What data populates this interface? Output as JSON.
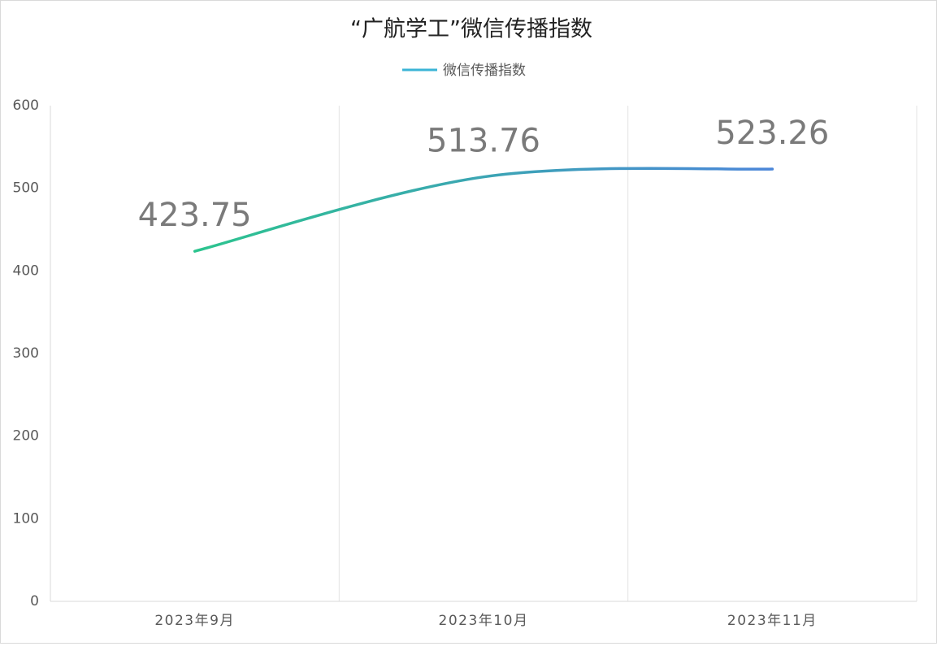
{
  "chart_data": {
    "type": "line",
    "title": "“广航学工”微信传播指数",
    "categories": [
      "2023年9月",
      "2023年10月",
      "2023年11月"
    ],
    "series": [
      {
        "name": "微信传播指数",
        "color": "#3bb4d6",
        "gradient": [
          "#2cc48e",
          "#4b86d9"
        ],
        "values": [
          423.75,
          513.76,
          523.26
        ]
      }
    ],
    "ylim": [
      0,
      600
    ],
    "yticks": [
      0,
      100,
      200,
      300,
      400,
      500,
      600
    ],
    "grid": true,
    "smooth": true,
    "legend": "top"
  }
}
